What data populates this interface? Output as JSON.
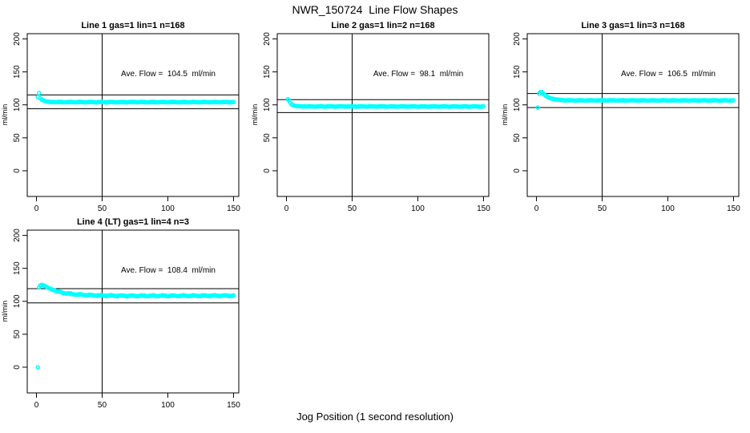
{
  "page": {
    "background": "#ffffff"
  },
  "chart_data": {
    "type": "scatter",
    "title": "NWR_150724  Line Flow Shapes",
    "xlabel": "Jog Position (1 second resolution)",
    "grid": false,
    "layout": {
      "rows": 2,
      "cols": 3,
      "filled_cells": 4
    },
    "marker": {
      "shape": "open-circle",
      "color": "#00ffff"
    },
    "axis_color": "#000000",
    "panels": [
      {
        "title": "Line 1 gas=1 lin=1 n=168",
        "line": 1,
        "gas": 1,
        "lin": 1,
        "n": 168,
        "annotation": "Ave. Flow =  104.5  ml/min",
        "ave_flow_ml_min": 104.5,
        "ylabel": "ml/min",
        "x_ticks": [
          0,
          50,
          100,
          150
        ],
        "y_ticks": [
          0,
          50,
          100,
          150,
          200
        ],
        "xlim": [
          -7,
          154
        ],
        "ylim": [
          -39,
          208
        ],
        "vline_x": 50,
        "hlines": [
          115.0,
          94.1
        ],
        "x_range_data": [
          1,
          150
        ],
        "keypoints": [
          [
            1,
            112
          ],
          [
            2,
            118
          ],
          [
            3,
            110
          ],
          [
            4,
            108
          ],
          [
            5,
            107
          ],
          [
            6,
            106
          ],
          [
            8,
            105
          ],
          [
            10,
            104.5
          ],
          [
            13,
            104.2
          ],
          [
            150,
            104.2
          ]
        ],
        "outliers": [],
        "noise_amp": 0.5
      },
      {
        "title": "Line 2 gas=1 lin=2 n=168",
        "line": 2,
        "gas": 1,
        "lin": 2,
        "n": 168,
        "annotation": "Ave. Flow =  98.1  ml/min",
        "ave_flow_ml_min": 98.1,
        "ylabel": "ml/min",
        "x_ticks": [
          0,
          50,
          100,
          150
        ],
        "y_ticks": [
          0,
          50,
          100,
          150,
          200
        ],
        "xlim": [
          -7,
          154
        ],
        "ylim": [
          -39,
          208
        ],
        "vline_x": 50,
        "hlines": [
          107.9,
          88.3
        ],
        "x_range_data": [
          1,
          150
        ],
        "keypoints": [
          [
            1,
            108.5
          ],
          [
            2,
            107
          ],
          [
            3,
            103
          ],
          [
            4,
            100.5
          ],
          [
            5,
            99.5
          ],
          [
            6,
            98.8
          ],
          [
            8,
            98
          ],
          [
            12,
            97.6
          ],
          [
            150,
            97.5
          ]
        ],
        "outliers": [],
        "noise_amp": 0.4
      },
      {
        "title": "Line 3 gas=1 lin=3 n=168",
        "line": 3,
        "gas": 1,
        "lin": 3,
        "n": 168,
        "annotation": "Ave. Flow =  106.5  ml/min",
        "ave_flow_ml_min": 106.5,
        "ylabel": "ml/min",
        "x_ticks": [
          0,
          50,
          100,
          150
        ],
        "y_ticks": [
          0,
          50,
          100,
          150,
          200
        ],
        "xlim": [
          -7,
          154
        ],
        "ylim": [
          -39,
          208
        ],
        "vline_x": 50,
        "hlines": [
          117.2,
          95.9
        ],
        "x_range_data": [
          1,
          150
        ],
        "keypoints": [
          [
            2,
            117
          ],
          [
            3,
            119.5
          ],
          [
            4,
            119.5
          ],
          [
            5,
            117.5
          ],
          [
            6,
            115.5
          ],
          [
            8,
            112.5
          ],
          [
            10,
            110.5
          ],
          [
            13,
            108.8
          ],
          [
            17,
            107.6
          ],
          [
            22,
            107
          ],
          [
            30,
            106.8
          ],
          [
            150,
            106.8
          ]
        ],
        "outliers": [
          [
            1,
            96
          ]
        ],
        "noise_amp": 0.4
      },
      {
        "title": "Line 4 (LT) gas=1 lin=4 n=3",
        "line": 4,
        "line_note": "LT",
        "gas": 1,
        "lin": 4,
        "n": 3,
        "annotation": "Ave. Flow =  108.4  ml/min",
        "ave_flow_ml_min": 108.4,
        "ylabel": "ml/min",
        "x_ticks": [
          0,
          50,
          100,
          150
        ],
        "y_ticks": [
          0,
          50,
          100,
          150,
          200
        ],
        "xlim": [
          -7,
          154
        ],
        "ylim": [
          -39,
          208
        ],
        "vline_x": 50,
        "hlines": [
          119.2,
          97.6
        ],
        "x_range_data": [
          1,
          150
        ],
        "keypoints": [
          [
            2,
            121
          ],
          [
            3,
            124
          ],
          [
            4,
            125
          ],
          [
            5,
            124.5
          ],
          [
            6,
            123.5
          ],
          [
            8,
            121.5
          ],
          [
            10,
            119.5
          ],
          [
            13,
            117
          ],
          [
            16,
            115
          ],
          [
            20,
            113
          ],
          [
            25,
            111.5
          ],
          [
            30,
            110.5
          ],
          [
            38,
            109.5
          ],
          [
            50,
            108.8
          ],
          [
            70,
            108.3
          ],
          [
            100,
            108.4
          ],
          [
            150,
            108.6
          ]
        ],
        "outliers": [
          [
            1,
            0
          ]
        ],
        "noise_amp": 0.9
      }
    ]
  }
}
